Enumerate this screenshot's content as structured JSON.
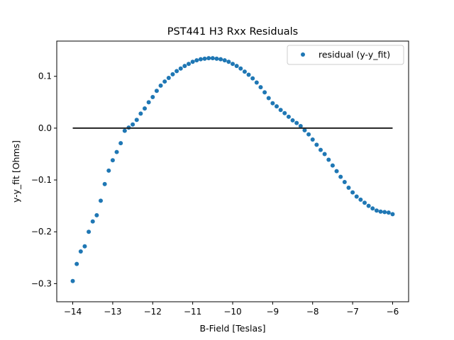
{
  "chart_data": {
    "type": "scatter",
    "title": "PST441 H3 Rxx Residuals",
    "xlabel": "B-Field [Teslas]",
    "ylabel": "y-y_fit [Ohms]",
    "xlim": [
      -14.4,
      -5.6
    ],
    "ylim": [
      -0.335,
      0.168
    ],
    "xticks": [
      -14,
      -13,
      -12,
      -11,
      -10,
      -9,
      -8,
      -7,
      -6
    ],
    "xtick_labels": [
      "−14",
      "−13",
      "−12",
      "−11",
      "−10",
      "−9",
      "−8",
      "−7",
      "−6"
    ],
    "yticks": [
      -0.3,
      -0.2,
      -0.1,
      0.0,
      0.1
    ],
    "ytick_labels": [
      "−0.3",
      "−0.2",
      "−0.1",
      "0.0",
      "0.1"
    ],
    "grid": false,
    "legend_position": "top-right",
    "series": [
      {
        "name": "residual (y-y_fit)",
        "kind": "scatter",
        "color": "#1f77b4",
        "x": [
          -14.0,
          -13.9,
          -13.8,
          -13.7,
          -13.6,
          -13.5,
          -13.4,
          -13.3,
          -13.2,
          -13.1,
          -13.0,
          -12.9,
          -12.8,
          -12.7,
          -12.6,
          -12.5,
          -12.4,
          -12.3,
          -12.2,
          -12.1,
          -12.0,
          -11.9,
          -11.8,
          -11.7,
          -11.6,
          -11.5,
          -11.4,
          -11.3,
          -11.2,
          -11.1,
          -11.0,
          -10.9,
          -10.8,
          -10.7,
          -10.6,
          -10.5,
          -10.4,
          -10.3,
          -10.2,
          -10.1,
          -10.0,
          -9.9,
          -9.8,
          -9.7,
          -9.6,
          -9.5,
          -9.4,
          -9.3,
          -9.2,
          -9.1,
          -9.0,
          -8.9,
          -8.8,
          -8.7,
          -8.6,
          -8.5,
          -8.4,
          -8.3,
          -8.2,
          -8.1,
          -8.0,
          -7.9,
          -7.8,
          -7.7,
          -7.6,
          -7.5,
          -7.4,
          -7.3,
          -7.2,
          -7.1,
          -7.0,
          -6.9,
          -6.8,
          -6.7,
          -6.6,
          -6.5,
          -6.4,
          -6.3,
          -6.2,
          -6.1,
          -6.0
        ],
        "y": [
          -0.295,
          -0.262,
          -0.238,
          -0.228,
          -0.2,
          -0.18,
          -0.168,
          -0.14,
          -0.108,
          -0.082,
          -0.062,
          -0.046,
          -0.029,
          -0.005,
          0.001,
          0.007,
          0.016,
          0.028,
          0.038,
          0.05,
          0.06,
          0.072,
          0.082,
          0.09,
          0.097,
          0.104,
          0.11,
          0.115,
          0.12,
          0.124,
          0.128,
          0.131,
          0.133,
          0.134,
          0.135,
          0.135,
          0.134,
          0.133,
          0.131,
          0.128,
          0.124,
          0.12,
          0.115,
          0.109,
          0.103,
          0.096,
          0.088,
          0.079,
          0.069,
          0.058,
          0.048,
          0.042,
          0.035,
          0.029,
          0.022,
          0.015,
          0.01,
          0.004,
          -0.004,
          -0.012,
          -0.022,
          -0.032,
          -0.042,
          -0.05,
          -0.061,
          -0.072,
          -0.083,
          -0.094,
          -0.104,
          -0.115,
          -0.124,
          -0.132,
          -0.138,
          -0.144,
          -0.15,
          -0.155,
          -0.159,
          -0.161,
          -0.162,
          -0.163,
          -0.166
        ]
      },
      {
        "kind": "line",
        "color": "#222222",
        "x": [
          -14.0,
          -6.0
        ],
        "y": [
          0.0,
          0.0
        ]
      }
    ]
  },
  "colors": {
    "scatter": "#1f77b4",
    "zero_line": "#222222",
    "axes": "#000000",
    "background": "#ffffff"
  }
}
